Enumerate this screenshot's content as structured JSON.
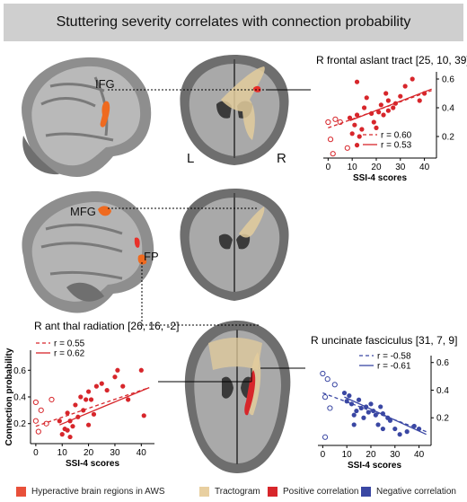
{
  "title": "Stuttering severity correlates with connection probability",
  "labels": {
    "ifg": "IFG",
    "mfg": "MFG",
    "fp": "FP",
    "left": "L",
    "right": "R"
  },
  "legend": [
    {
      "label": "Hyperactive brain regions in AWS",
      "color": "#e8503a"
    },
    {
      "label": "Tractogram",
      "color": "#e8cfa0"
    },
    {
      "label": "Positive correlation",
      "color": "#d7262b"
    },
    {
      "label": "Negative correlation",
      "color": "#3a47a3"
    }
  ],
  "chart_data": [
    {
      "type": "scatter",
      "title": "R frontal aslant tract [25, 10, 39]",
      "xlabel": "SSI-4 scores",
      "ylabel": "",
      "xlim": [
        -2,
        45
      ],
      "ylim": [
        0.05,
        0.65
      ],
      "xticks": [
        0,
        10,
        20,
        30,
        40
      ],
      "yticks": [
        0.2,
        0.4,
        0.6
      ],
      "color": "#d7262b",
      "legend": [
        {
          "style": "dashed",
          "label": "r = 0.60"
        },
        {
          "style": "solid",
          "label": "r = 0.53"
        }
      ],
      "open_points": [
        [
          0,
          0.3
        ],
        [
          3,
          0.32
        ],
        [
          5,
          0.3
        ],
        [
          1,
          0.18
        ],
        [
          8,
          0.12
        ],
        [
          2,
          0.08
        ]
      ],
      "filled_points": [
        [
          9,
          0.33
        ],
        [
          10,
          0.22
        ],
        [
          11,
          0.28
        ],
        [
          12,
          0.35
        ],
        [
          13,
          0.2
        ],
        [
          12,
          0.14
        ],
        [
          14,
          0.25
        ],
        [
          15,
          0.4
        ],
        [
          16,
          0.47
        ],
        [
          18,
          0.36
        ],
        [
          19,
          0.3
        ],
        [
          20,
          0.26
        ],
        [
          21,
          0.37
        ],
        [
          22,
          0.42
        ],
        [
          23,
          0.35
        ],
        [
          24,
          0.5
        ],
        [
          25,
          0.45
        ],
        [
          27,
          0.4
        ],
        [
          28,
          0.43
        ],
        [
          30,
          0.48
        ],
        [
          32,
          0.55
        ],
        [
          35,
          0.6
        ],
        [
          38,
          0.45
        ],
        [
          40,
          0.5
        ],
        [
          12,
          0.58
        ],
        [
          25,
          0.38
        ]
      ],
      "fit_dashed": [
        [
          0,
          0.26
        ],
        [
          43,
          0.52
        ]
      ],
      "fit_solid": [
        [
          9,
          0.31
        ],
        [
          43,
          0.53
        ]
      ]
    },
    {
      "type": "scatter",
      "title": "R ant thal radiation [26, 16, -2]",
      "xlabel": "SSI-4 scores",
      "ylabel": "Connection probability",
      "xlim": [
        -2,
        45
      ],
      "ylim": [
        0.05,
        0.75
      ],
      "xticks": [
        0,
        10,
        20,
        30,
        40
      ],
      "yticks": [
        0.2,
        0.4,
        0.6
      ],
      "color": "#d7262b",
      "legend": [
        {
          "style": "dashed",
          "label": "r = 0.55"
        },
        {
          "style": "solid",
          "label": "r = 0.62"
        }
      ],
      "open_points": [
        [
          0,
          0.36
        ],
        [
          2,
          0.3
        ],
        [
          4,
          0.2
        ],
        [
          1,
          0.14
        ],
        [
          0,
          0.22
        ],
        [
          6,
          0.38
        ]
      ],
      "filled_points": [
        [
          9,
          0.22
        ],
        [
          10,
          0.12
        ],
        [
          11,
          0.16
        ],
        [
          12,
          0.15
        ],
        [
          12,
          0.28
        ],
        [
          13,
          0.1
        ],
        [
          13,
          0.22
        ],
        [
          14,
          0.18
        ],
        [
          15,
          0.34
        ],
        [
          16,
          0.25
        ],
        [
          17,
          0.4
        ],
        [
          18,
          0.3
        ],
        [
          19,
          0.38
        ],
        [
          20,
          0.44
        ],
        [
          21,
          0.38
        ],
        [
          22,
          0.27
        ],
        [
          23,
          0.48
        ],
        [
          25,
          0.5
        ],
        [
          27,
          0.45
        ],
        [
          30,
          0.55
        ],
        [
          31,
          0.6
        ],
        [
          33,
          0.48
        ],
        [
          35,
          0.38
        ],
        [
          40,
          0.6
        ],
        [
          41,
          0.26
        ],
        [
          20,
          0.19
        ]
      ],
      "fit_dashed": [
        [
          0,
          0.18
        ],
        [
          43,
          0.47
        ]
      ],
      "fit_solid": [
        [
          9,
          0.19
        ],
        [
          43,
          0.47
        ]
      ]
    },
    {
      "type": "scatter",
      "title": "R uncinate fasciculus [31, 7, 9]",
      "xlabel": "SSI-4 scores",
      "ylabel": "",
      "xlim": [
        -2,
        45
      ],
      "ylim": [
        0.0,
        0.65
      ],
      "xticks": [
        0,
        10,
        20,
        30,
        40
      ],
      "yticks": [
        0.2,
        0.4,
        0.6
      ],
      "color": "#3a47a3",
      "legend": [
        {
          "style": "dashed",
          "label": "r = -0.58"
        },
        {
          "style": "solid",
          "label": "r = -0.61"
        }
      ],
      "open_points": [
        [
          0,
          0.52
        ],
        [
          2,
          0.48
        ],
        [
          5,
          0.44
        ],
        [
          1,
          0.35
        ],
        [
          3,
          0.27
        ],
        [
          1,
          0.06
        ]
      ],
      "filled_points": [
        [
          9,
          0.38
        ],
        [
          10,
          0.32
        ],
        [
          11,
          0.36
        ],
        [
          12,
          0.3
        ],
        [
          13,
          0.22
        ],
        [
          13,
          0.15
        ],
        [
          14,
          0.25
        ],
        [
          15,
          0.33
        ],
        [
          16,
          0.27
        ],
        [
          17,
          0.2
        ],
        [
          18,
          0.28
        ],
        [
          19,
          0.24
        ],
        [
          20,
          0.3
        ],
        [
          21,
          0.25
        ],
        [
          22,
          0.22
        ],
        [
          23,
          0.15
        ],
        [
          24,
          0.28
        ],
        [
          25,
          0.23
        ],
        [
          27,
          0.2
        ],
        [
          28,
          0.18
        ],
        [
          30,
          0.12
        ],
        [
          32,
          0.08
        ],
        [
          35,
          0.1
        ],
        [
          38,
          0.14
        ],
        [
          40,
          0.12
        ],
        [
          25,
          0.12
        ]
      ],
      "fit_dashed": [
        [
          0,
          0.38
        ],
        [
          43,
          0.1
        ]
      ],
      "fit_solid": [
        [
          9,
          0.35
        ],
        [
          43,
          0.08
        ]
      ]
    }
  ]
}
